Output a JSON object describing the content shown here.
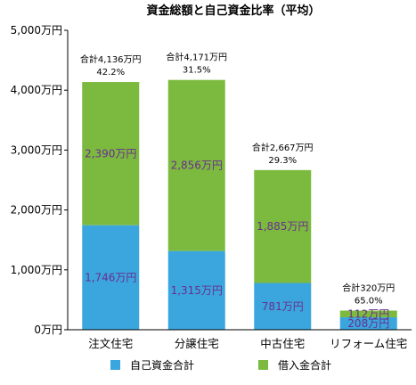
{
  "chart_data": {
    "type": "bar",
    "stacked": true,
    "title": "資金総額と自己資金比率（平均）",
    "categories": [
      "注文住宅",
      "分譲住宅",
      "中古住宅",
      "リフォーム住宅"
    ],
    "series": [
      {
        "name": "自己資金合計",
        "color": "#3aa6dd",
        "values": [
          1746,
          1315,
          781,
          208
        ],
        "labels": [
          "1,746万円",
          "1,315万円",
          "781万円",
          "208万円"
        ]
      },
      {
        "name": "借入金合計",
        "color": "#7cba3f",
        "values": [
          2390,
          2856,
          1885,
          112
        ],
        "labels": [
          "2,390万円",
          "2,856万円",
          "1,885万円",
          "112万円"
        ]
      }
    ],
    "totals": [
      "合計4,136万円",
      "合計4,171万円",
      "合計2,667万円",
      "合計320万円"
    ],
    "ratios": [
      "42.2%",
      "31.5%",
      "29.3%",
      "65.0%"
    ],
    "ylim": [
      0,
      5000
    ],
    "yticks": [
      0,
      1000,
      2000,
      3000,
      4000,
      5000
    ],
    "ytick_labels": [
      "0万円",
      "1,000万円",
      "2,000万円",
      "3,000万円",
      "4,000万円",
      "5,000万円"
    ],
    "grid": false,
    "legend_position": "bottom"
  }
}
